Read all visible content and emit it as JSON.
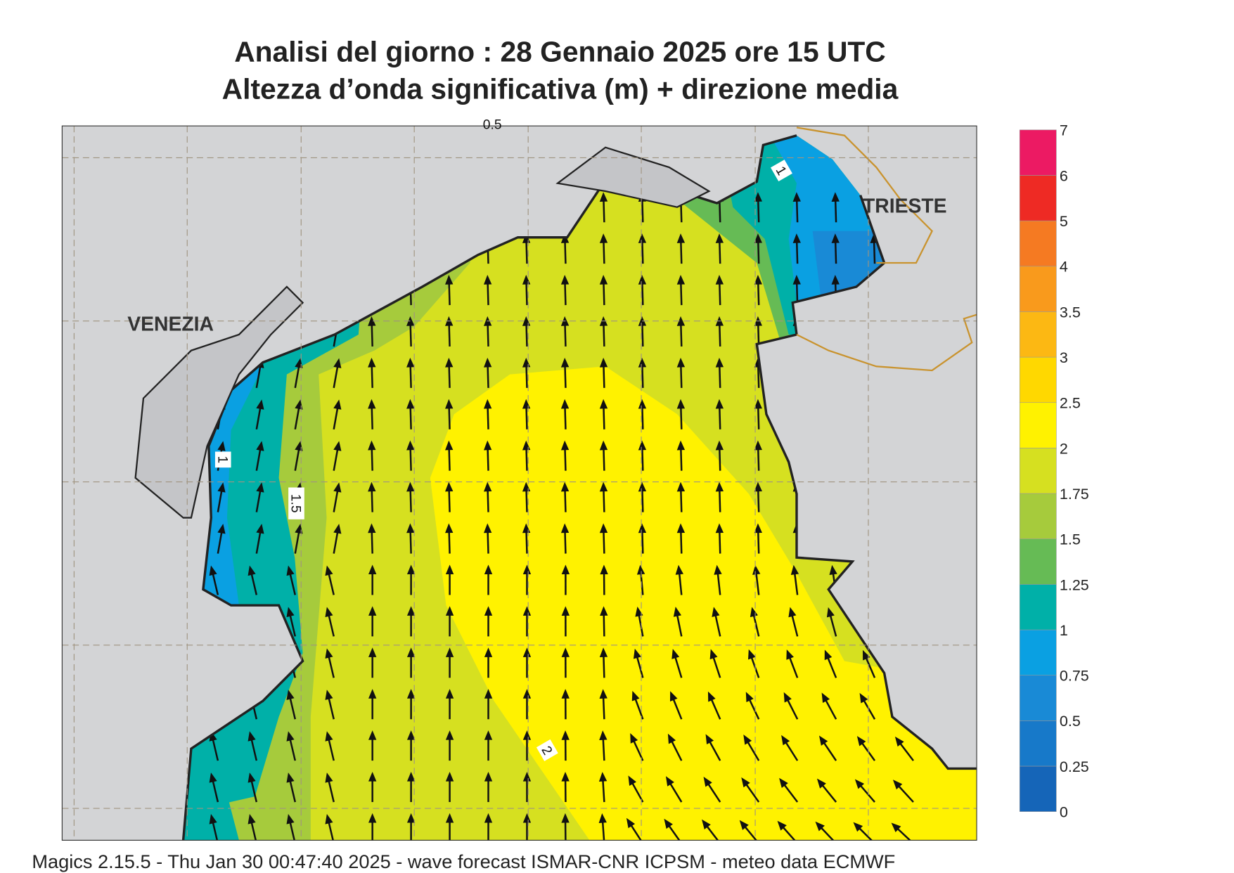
{
  "title": [
    "Analisi del giorno :  28  Gennaio  2025   ore 15 UTC",
    "Altezza d’onda significativa (m) + direzione media"
  ],
  "cities": [
    "VENEZIA",
    "TRIESTE"
  ],
  "contour_labels": [
    "0.5",
    "1",
    "1",
    "1.5",
    "2"
  ],
  "colorbar": {
    "levels": [
      0,
      0.25,
      0.5,
      0.75,
      1,
      1.25,
      1.5,
      1.75,
      2,
      2.5,
      3,
      3.5,
      4,
      5,
      6,
      7
    ],
    "colors": [
      "#1565b8",
      "#1779c9",
      "#198ad6",
      "#0aa0e2",
      "#00b0a8",
      "#66bb55",
      "#a6cb3c",
      "#d6e020",
      "#fff200",
      "#ffd800",
      "#fcb813",
      "#f99a1c",
      "#f57a22",
      "#ee2a24",
      "#ec1a63"
    ]
  },
  "footer": "Magics 2.15.5 - Thu Jan 30 00:47:40 2025 - wave forecast  ISMAR-CNR  ICPSM - meteo data    ECMWF"
}
